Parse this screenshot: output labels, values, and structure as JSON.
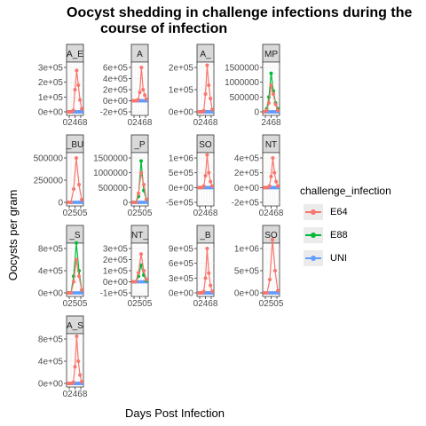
{
  "title_lines": [
    "Oocyst shedding in challenge infections during the",
    "course of infection"
  ],
  "chart_data": {
    "type": "line",
    "title": "Oocyst shedding in challenge infections during the course of infection",
    "xlabel": "Days Post Infection",
    "ylabel": "Oocysts per gram",
    "legend": {
      "title": "challenge_infection",
      "placement": "right",
      "entries": [
        {
          "name": "E64",
          "color": "#F8766D"
        },
        {
          "name": "E88",
          "color": "#00BA38"
        },
        {
          "name": "UNI",
          "color": "#619CFF"
        }
      ]
    },
    "panels": [
      {
        "strip": "A_E",
        "yticks": [
          "0e+00",
          "1e+05",
          "2e+05",
          "3e+05"
        ],
        "ymin": 0,
        "ymax": 300000,
        "xticks": "02468",
        "x": [
          0,
          1,
          2,
          3,
          4,
          5,
          6,
          7,
          8
        ],
        "e64": [
          0,
          0,
          0,
          10000,
          150000,
          280000,
          180000,
          80000,
          20000
        ],
        "e88": null,
        "uni": [
          0,
          0,
          0,
          0,
          0,
          0,
          0,
          0,
          0
        ]
      },
      {
        "strip": "A",
        "yticks": [
          "-2e+05",
          "0e+00",
          "2e+05",
          "4e+05",
          "6e+05"
        ],
        "ymin": -200000,
        "ymax": 600000,
        "xticks": "02468",
        "x": [
          0,
          1,
          2,
          3,
          4,
          5,
          6,
          7,
          8
        ],
        "e64": [
          0,
          0,
          0,
          20000,
          150000,
          600000,
          200000,
          100000,
          30000
        ],
        "e88": null,
        "uni": [
          0,
          0,
          0,
          0,
          0,
          0,
          0,
          0,
          0
        ]
      },
      {
        "strip": "A_",
        "yticks": [
          "0e+00",
          "1e+05",
          "2e+05"
        ],
        "ymin": 0,
        "ymax": 200000,
        "xticks": "02468",
        "x": [
          0,
          1,
          2,
          3,
          4,
          5,
          6,
          7,
          8
        ],
        "e64": [
          0,
          0,
          0,
          5000,
          80000,
          210000,
          120000,
          60000,
          10000
        ],
        "e88": null,
        "uni": [
          0,
          0,
          0,
          0,
          0,
          0,
          0,
          0,
          0
        ]
      },
      {
        "strip": "MP",
        "yticks": [
          "0",
          "500000",
          "1000000",
          "1500000"
        ],
        "ymin": 0,
        "ymax": 1500000,
        "xticks": "2468",
        "x": [
          2,
          3,
          4,
          5,
          6,
          7,
          8
        ],
        "e64": [
          0,
          50000,
          300000,
          900000,
          600000,
          250000,
          50000
        ],
        "e88": [
          0,
          100000,
          500000,
          1300000,
          700000,
          300000,
          100000
        ],
        "uni": [
          0,
          0,
          0,
          0,
          0,
          0,
          0
        ]
      },
      {
        "strip": "_BU",
        "yticks": [
          "0",
          "250000",
          "500000"
        ],
        "ymin": 0,
        "ymax": 500000,
        "xticks": "02505",
        "x": [
          0,
          2,
          4,
          6,
          8,
          10
        ],
        "e64": [
          0,
          0,
          150000,
          500000,
          200000,
          30000
        ],
        "e88": null,
        "uni": [
          0,
          0,
          0,
          0,
          0,
          0
        ]
      },
      {
        "strip": "_P",
        "yticks": [
          "0",
          "500000",
          "1000000",
          "1500000"
        ],
        "ymin": 0,
        "ymax": 1500000,
        "xticks": "02505",
        "x": [
          0,
          2,
          4,
          6,
          8,
          10
        ],
        "e64": [
          0,
          0,
          300000,
          1000000,
          600000,
          100000
        ],
        "e88": [
          0,
          0,
          200000,
          1400000,
          400000,
          100000
        ],
        "uni": [
          0,
          0,
          0,
          0,
          0,
          0
        ]
      },
      {
        "strip": "SO",
        "yticks": [
          "-5e+05",
          "0e+00",
          "5e+05",
          "1e+06"
        ],
        "ymin": -500000,
        "ymax": 1000000,
        "xticks": "02468",
        "x": [
          0,
          1,
          2,
          3,
          4,
          5,
          6,
          7,
          8
        ],
        "e64": [
          0,
          0,
          0,
          50000,
          400000,
          1100000,
          500000,
          200000,
          50000
        ],
        "e88": null,
        "uni": [
          0,
          0,
          0,
          0,
          0,
          0,
          0,
          0,
          0
        ]
      },
      {
        "strip": "NT",
        "yticks": [
          "-2e+05",
          "0e+00",
          "2e+05",
          "4e+05"
        ],
        "ymin": -200000,
        "ymax": 400000,
        "xticks": "02468",
        "x": [
          0,
          1,
          2,
          3,
          4,
          5,
          6,
          7,
          8
        ],
        "e64": [
          0,
          0,
          0,
          20000,
          150000,
          400000,
          200000,
          80000,
          20000
        ],
        "e88": null,
        "uni": [
          0,
          0,
          0,
          0,
          0,
          0,
          0,
          0,
          0
        ]
      },
      {
        "strip": "_S",
        "yticks": [
          "0e+00",
          "4e+05",
          "8e+05"
        ],
        "ymin": 0,
        "ymax": 800000,
        "xticks": "02505",
        "x": [
          0,
          2,
          4,
          6,
          8,
          10
        ],
        "e64": [
          0,
          0,
          200000,
          600000,
          300000,
          50000
        ],
        "e88": [
          0,
          0,
          300000,
          900000,
          400000,
          50000
        ],
        "uni": [
          0,
          0,
          0,
          0,
          0,
          0
        ]
      },
      {
        "strip": "NT_",
        "yticks": [
          "-1e+05",
          "0e+00",
          "1e+05",
          "2e+05",
          "3e+05"
        ],
        "ymin": -100000,
        "ymax": 300000,
        "xticks": "02505",
        "x": [
          0,
          2,
          4,
          6,
          8,
          10
        ],
        "e64": [
          0,
          0,
          80000,
          250000,
          100000,
          20000
        ],
        "e88": [
          0,
          0,
          50000,
          150000,
          60000,
          10000
        ],
        "uni": [
          0,
          0,
          0,
          0,
          0,
          0
        ]
      },
      {
        "strip": "_B",
        "yticks": [
          "0e+00",
          "3e+05",
          "6e+05",
          "9e+05"
        ],
        "ymin": 0,
        "ymax": 900000,
        "xticks": "02468",
        "x": [
          0,
          1,
          2,
          3,
          4,
          5,
          6,
          7,
          8
        ],
        "e64": [
          0,
          0,
          0,
          30000,
          300000,
          900000,
          400000,
          150000,
          30000
        ],
        "e88": null,
        "uni": [
          0,
          0,
          0,
          0,
          0,
          0,
          0,
          0,
          0
        ]
      },
      {
        "strip": "SO",
        "yticks": [
          "0e+00",
          "5e+05",
          "1e+06"
        ],
        "ymin": 0,
        "ymax": 1000000,
        "xticks": "02505",
        "x": [
          0,
          2,
          4,
          6,
          8,
          10
        ],
        "e64": [
          0,
          0,
          300000,
          1200000,
          500000,
          50000
        ],
        "e88": null,
        "uni": [
          0,
          0,
          0,
          0,
          0,
          0
        ]
      },
      {
        "strip": "A_S",
        "yticks": [
          "0e+00",
          "4e+05",
          "8e+05"
        ],
        "ymin": 0,
        "ymax": 800000,
        "xticks": "02468",
        "x": [
          0,
          1,
          2,
          3,
          4,
          5,
          6,
          7,
          8
        ],
        "e64": [
          0,
          0,
          0,
          20000,
          300000,
          850000,
          400000,
          150000,
          30000
        ],
        "e88": null,
        "uni": [
          0,
          0,
          0,
          0,
          0,
          0,
          0,
          0,
          0
        ]
      }
    ]
  }
}
